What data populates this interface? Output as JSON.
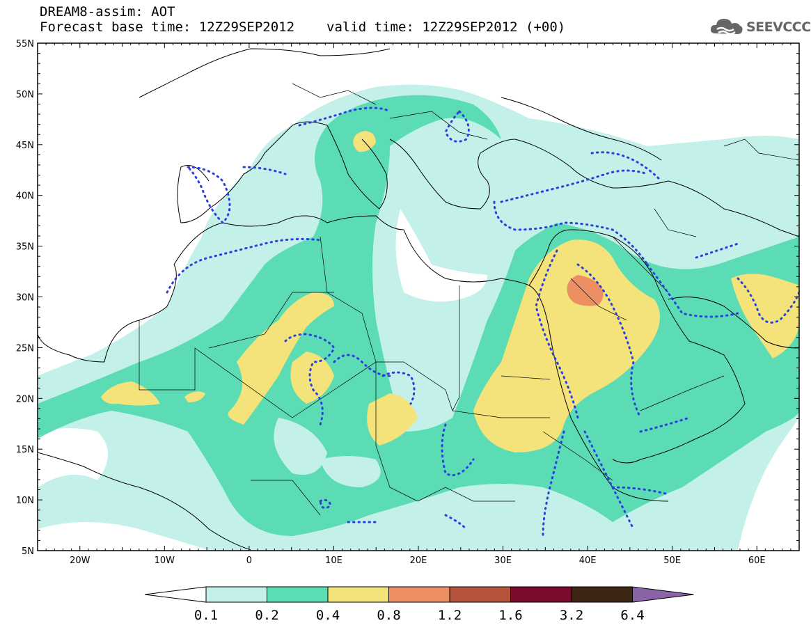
{
  "header": {
    "title": "DREAM8-assim: AOT",
    "base_time_label": "Forecast base time: 12Z29SEP2012",
    "valid_time_label": "valid time: 12Z29SEP2012 (+00)"
  },
  "logo": {
    "text": "SEEVCCC",
    "icon": "cloud-icon"
  },
  "map": {
    "lat_labels": [
      "55N",
      "50N",
      "45N",
      "40N",
      "35N",
      "30N",
      "25N",
      "20N",
      "15N",
      "10N",
      "5N"
    ],
    "lon_labels": [
      "20W",
      "10W",
      "0",
      "10E",
      "20E",
      "30E",
      "40E",
      "50E",
      "60E"
    ],
    "lat_range": [
      5,
      55
    ],
    "lon_range": [
      -25,
      65
    ]
  },
  "colorbar": {
    "labels": [
      "0.1",
      "0.2",
      "0.4",
      "0.8",
      "1.2",
      "1.6",
      "3.2",
      "6.4"
    ],
    "colors": [
      "#c4f0ea",
      "#5bdcb4",
      "#f4e27a",
      "#ec8f63",
      "#b5533c",
      "#7c0a2c",
      "#3e2616",
      "#8a64a6"
    ],
    "low_color": "#ffffff"
  }
}
